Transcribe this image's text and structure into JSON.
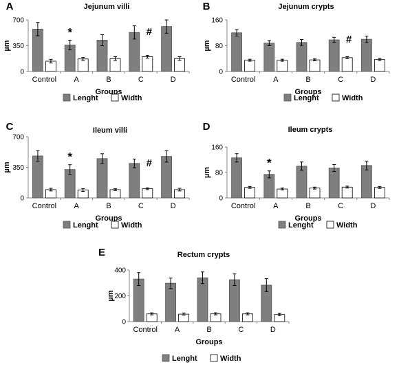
{
  "colors": {
    "length": "#7f7f7f",
    "width": "#ffffff",
    "axis": "#868686",
    "stroke": "#000000"
  },
  "chart_data": [
    {
      "panel": "A",
      "type": "bar",
      "title": "Jejunum villi",
      "xlabel": "Groups",
      "ylabel": "µm",
      "ylim": [
        0,
        700
      ],
      "yticks": [
        "0",
        "350",
        "700"
      ],
      "categories": [
        "Control",
        "A",
        "B",
        "C",
        "D"
      ],
      "series": [
        {
          "name": "Lenght",
          "values": [
            575,
            360,
            425,
            530,
            610
          ],
          "errors": [
            90,
            65,
            75,
            90,
            90
          ]
        },
        {
          "name": "Width",
          "values": [
            140,
            170,
            175,
            200,
            175
          ],
          "errors": [
            25,
            20,
            25,
            20,
            25
          ]
        }
      ],
      "annotations": [
        {
          "category": "A",
          "text": "*"
        },
        {
          "category": "C",
          "text": "#"
        }
      ],
      "legend": [
        "Lenght",
        "Width"
      ]
    },
    {
      "panel": "B",
      "type": "bar",
      "title": "Jejunum crypts",
      "xlabel": "Groups",
      "ylabel": "µm",
      "ylim": [
        0,
        160
      ],
      "yticks": [
        "0",
        "80",
        "160"
      ],
      "categories": [
        "Control",
        "A",
        "B",
        "C",
        "D"
      ],
      "series": [
        {
          "name": "Lenght",
          "values": [
            120,
            88,
            90,
            98,
            100
          ],
          "errors": [
            10,
            8,
            9,
            8,
            10
          ]
        },
        {
          "name": "Width",
          "values": [
            35,
            35,
            36,
            43,
            37
          ],
          "errors": [
            3,
            3,
            3,
            3,
            3
          ]
        }
      ],
      "annotations": [
        {
          "category": "C",
          "text": "#"
        }
      ],
      "legend": [
        "Lenght",
        "Width"
      ]
    },
    {
      "panel": "C",
      "type": "bar",
      "title": "Ileum villi",
      "xlabel": "Groups",
      "ylabel": "µm",
      "ylim": [
        0,
        700
      ],
      "yticks": [
        "0",
        "350",
        "700"
      ],
      "categories": [
        "Control",
        "A",
        "B",
        "C",
        "D"
      ],
      "series": [
        {
          "name": "Lenght",
          "values": [
            480,
            325,
            450,
            395,
            475
          ],
          "errors": [
            60,
            55,
            55,
            50,
            65
          ]
        },
        {
          "name": "Width",
          "values": [
            95,
            90,
            95,
            105,
            95
          ],
          "errors": [
            15,
            15,
            10,
            10,
            15
          ]
        }
      ],
      "annotations": [
        {
          "category": "A",
          "text": "*"
        },
        {
          "category": "C",
          "text": "#"
        }
      ],
      "legend": [
        "Lenght",
        "Width"
      ]
    },
    {
      "panel": "D",
      "type": "bar",
      "title": "Ileum crypts",
      "xlabel": "Groups",
      "ylabel": "µm",
      "ylim": [
        0,
        160
      ],
      "yticks": [
        "0",
        "80",
        "160"
      ],
      "categories": [
        "Control",
        "A",
        "B",
        "C",
        "D"
      ],
      "series": [
        {
          "name": "Lenght",
          "values": [
            126,
            74,
            100,
            94,
            102
          ],
          "errors": [
            13,
            11,
            13,
            11,
            14
          ]
        },
        {
          "name": "Width",
          "values": [
            33,
            28,
            31,
            34,
            33
          ],
          "errors": [
            3,
            3,
            3,
            3,
            3
          ]
        }
      ],
      "annotations": [
        {
          "category": "A",
          "text": "*"
        }
      ],
      "legend": [
        "Lenght",
        "Width"
      ]
    },
    {
      "panel": "E",
      "type": "bar",
      "title": "Rectum crypts",
      "xlabel": "Groups",
      "ylabel": "µm",
      "ylim": [
        0,
        400
      ],
      "yticks": [
        "0",
        "200",
        "400"
      ],
      "categories": [
        "Control",
        "A",
        "B",
        "C",
        "D"
      ],
      "series": [
        {
          "name": "Lenght",
          "values": [
            330,
            298,
            340,
            325,
            283
          ],
          "errors": [
            50,
            40,
            45,
            45,
            50
          ]
        },
        {
          "name": "Width",
          "values": [
            60,
            58,
            60,
            60,
            55
          ],
          "errors": [
            8,
            8,
            8,
            8,
            8
          ]
        }
      ],
      "annotations": [],
      "legend": [
        "Lenght",
        "Width"
      ]
    }
  ]
}
